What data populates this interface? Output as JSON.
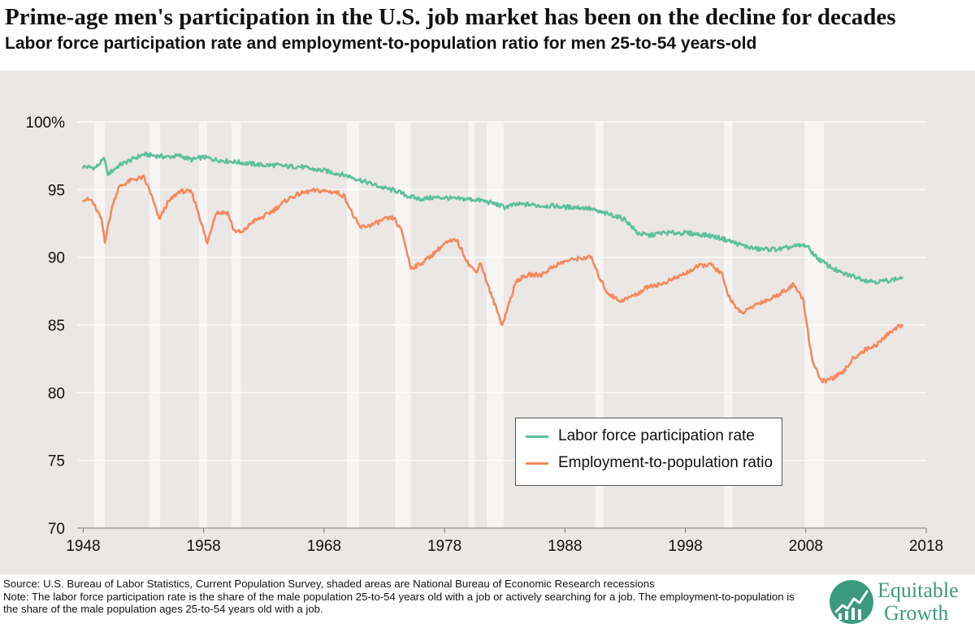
{
  "header": {
    "title": "Prime-age men's participation in the U.S. job market has been on the decline for decades",
    "subtitle": "Labor force participation rate and employment-to-population ratio for men 25-to-54 years-old"
  },
  "chart_data": {
    "type": "line",
    "title": "Prime-age men's participation in the U.S. job market has been on the decline for decades",
    "subtitle": "Labor force participation rate and employment-to-population ratio for men 25-to-54 years-old",
    "xlabel": "",
    "ylabel": "",
    "xlim": [
      1947.5,
      2018
    ],
    "ylim": [
      70,
      100
    ],
    "x_ticks": [
      1948,
      1958,
      1968,
      1978,
      1988,
      1998,
      2008,
      2018
    ],
    "y_ticks": [
      {
        "value": 100,
        "label": "100%"
      },
      {
        "value": 95,
        "label": "95"
      },
      {
        "value": 90,
        "label": "90"
      },
      {
        "value": 85,
        "label": "85"
      },
      {
        "value": 80,
        "label": "80"
      },
      {
        "value": 75,
        "label": "75"
      },
      {
        "value": 70,
        "label": "70"
      }
    ],
    "grid": "horizontal",
    "legend_position": "bottom-right",
    "recessions": [
      [
        1948.9,
        1949.8
      ],
      [
        1953.5,
        1954.4
      ],
      [
        1957.6,
        1958.3
      ],
      [
        1960.3,
        1961.1
      ],
      [
        1969.9,
        1970.9
      ],
      [
        1973.9,
        1975.2
      ],
      [
        1980.0,
        1980.5
      ],
      [
        1981.5,
        1982.9
      ],
      [
        1990.5,
        1991.2
      ],
      [
        2001.2,
        2001.9
      ],
      [
        2007.9,
        2009.5
      ]
    ],
    "series": [
      {
        "name": "Labor force participation rate",
        "color": "#5dbf9f",
        "x": [
          1948,
          1949,
          1949.8,
          1950,
          1951,
          1952,
          1953,
          1954,
          1955,
          1956,
          1957,
          1958,
          1959,
          1960,
          1961,
          1962,
          1963,
          1964,
          1965,
          1966,
          1967,
          1968,
          1969,
          1970,
          1971,
          1972,
          1973,
          1974,
          1975,
          1976,
          1977,
          1978,
          1979,
          1980,
          1981,
          1982,
          1983,
          1984,
          1985,
          1986,
          1987,
          1988,
          1989,
          1990,
          1991,
          1992,
          1993,
          1994,
          1995,
          1996,
          1997,
          1998,
          1999,
          2000,
          2001,
          2002,
          2003,
          2004,
          2005,
          2006,
          2007,
          2008,
          2009,
          2010,
          2011,
          2012,
          2013,
          2014,
          2015,
          2016
        ],
        "values": [
          96.7,
          96.6,
          97.3,
          96.1,
          96.8,
          97.2,
          97.6,
          97.5,
          97.4,
          97.5,
          97.2,
          97.4,
          97.2,
          97.1,
          97.0,
          96.9,
          96.8,
          96.8,
          96.7,
          96.7,
          96.5,
          96.4,
          96.2,
          96.0,
          95.7,
          95.4,
          95.1,
          94.9,
          94.5,
          94.3,
          94.4,
          94.4,
          94.3,
          94.3,
          94.2,
          94.0,
          93.7,
          93.9,
          93.9,
          93.8,
          93.8,
          93.7,
          93.7,
          93.6,
          93.3,
          93.1,
          92.8,
          91.8,
          91.6,
          91.8,
          91.8,
          91.8,
          91.7,
          91.6,
          91.4,
          91.1,
          90.8,
          90.6,
          90.6,
          90.6,
          90.8,
          90.9,
          89.9,
          89.3,
          88.8,
          88.6,
          88.3,
          88.2,
          88.3,
          88.5
        ]
      },
      {
        "name": "Employment-to-population ratio",
        "color": "#f4895f",
        "x": [
          1948,
          1948.7,
          1949.5,
          1949.8,
          1950.5,
          1951,
          1952,
          1953,
          1953.5,
          1954.3,
          1955,
          1956,
          1957,
          1957.5,
          1958.3,
          1959,
          1960,
          1960.5,
          1961.2,
          1962,
          1963,
          1964,
          1965,
          1966,
          1967,
          1968,
          1969,
          1969.7,
          1970.5,
          1971,
          1972,
          1973,
          1973.8,
          1974.5,
          1975.2,
          1976,
          1977,
          1978,
          1979,
          1980.0,
          1980.6,
          1981.0,
          1981.6,
          1982.8,
          1983.5,
          1984,
          1985,
          1986,
          1987,
          1988,
          1989,
          1990.2,
          1990.6,
          1991.5,
          1992.5,
          1993,
          1994,
          1995,
          1996,
          1997,
          1998,
          1999,
          2000,
          2001.0,
          2001.5,
          2002.5,
          2003,
          2004,
          2005,
          2006,
          2007,
          2007.8,
          2008.5,
          2009.3,
          2010,
          2011,
          2012,
          2013,
          2014,
          2015,
          2016
        ],
        "values": [
          94.3,
          94.2,
          92.8,
          91.2,
          94.1,
          95.2,
          95.7,
          95.9,
          95.0,
          92.8,
          94.0,
          94.9,
          94.8,
          93.5,
          91.0,
          93.3,
          93.3,
          92.0,
          91.8,
          92.6,
          93.0,
          93.6,
          94.3,
          94.7,
          94.9,
          94.9,
          94.8,
          94.5,
          92.9,
          92.2,
          92.4,
          92.8,
          92.9,
          91.8,
          89.2,
          89.5,
          90.2,
          91.0,
          91.3,
          89.5,
          88.9,
          89.6,
          87.9,
          85.0,
          87.0,
          88.3,
          88.7,
          88.7,
          89.3,
          89.7,
          89.9,
          90.0,
          89.0,
          87.4,
          86.8,
          86.9,
          87.3,
          87.9,
          88.0,
          88.4,
          88.8,
          89.3,
          89.5,
          88.8,
          87.3,
          85.9,
          86.0,
          86.6,
          86.9,
          87.4,
          88.0,
          86.8,
          82.5,
          80.8,
          81.0,
          81.4,
          82.6,
          83.2,
          83.6,
          84.5,
          85.0
        ]
      }
    ]
  },
  "footer": {
    "source": "Source: U.S. Bureau of Labor Statistics, Current Population Survey, shaded areas are National Bureau of Economic Research recessions",
    "note": "Note: The labor force participation rate is the share of the male population 25-to-54 years old with a job or actively searching for a job. The employment-to-population is the share of the male population ages 25-to-54 years old with a job."
  },
  "logo": {
    "line1": "Equitable",
    "line2": "Growth",
    "color": "#3c9a7e"
  }
}
